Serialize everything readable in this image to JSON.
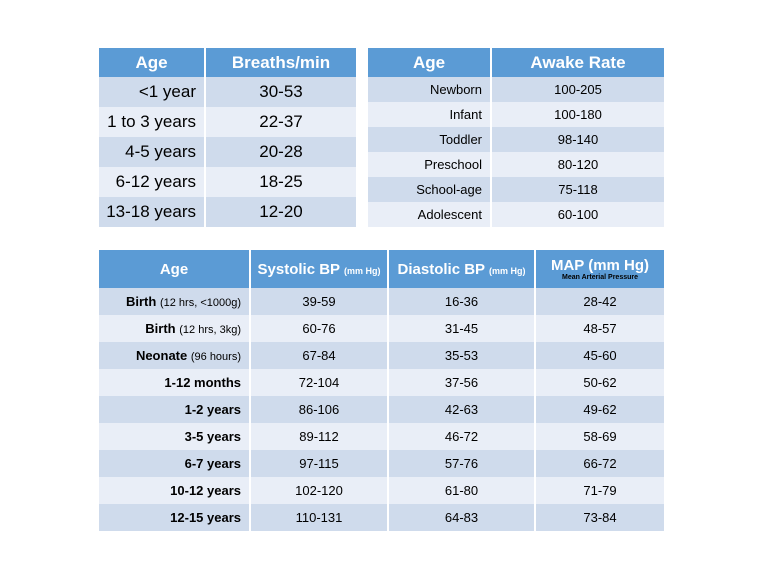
{
  "respiratory": {
    "headers": [
      "Age",
      "Breaths/min"
    ],
    "rows": [
      [
        "<1 year",
        "30-53"
      ],
      [
        "1 to 3 years",
        "22-37"
      ],
      [
        "4-5 years",
        "20-28"
      ],
      [
        "6-12 years",
        "18-25"
      ],
      [
        "13-18 years",
        "12-20"
      ]
    ]
  },
  "heart_rate": {
    "headers": [
      "Age",
      "Awake Rate"
    ],
    "rows": [
      [
        "Newborn",
        "100-205"
      ],
      [
        "Infant",
        "100-180"
      ],
      [
        "Toddler",
        "98-140"
      ],
      [
        "Preschool",
        "80-120"
      ],
      [
        "School-age",
        "75-118"
      ],
      [
        "Adolescent",
        "60-100"
      ]
    ]
  },
  "blood_pressure": {
    "headers": {
      "age": "Age",
      "systolic": "Systolic BP",
      "systolic_unit": "(mm Hg)",
      "diastolic": "Diastolic BP",
      "diastolic_unit": "(mm Hg)",
      "map": "MAP (mm Hg)",
      "map_sub": "Mean Arterial Pressure"
    },
    "rows": [
      {
        "age": "Birth",
        "note": "(12 hrs, <1000g)",
        "systolic": "39-59",
        "diastolic": "16-36",
        "map": "28-42"
      },
      {
        "age": "Birth",
        "note": "(12 hrs, 3kg)",
        "systolic": "60-76",
        "diastolic": "31-45",
        "map": "48-57"
      },
      {
        "age": "Neonate",
        "note": "(96 hours)",
        "systolic": "67-84",
        "diastolic": "35-53",
        "map": "45-60"
      },
      {
        "age": "1-12 months",
        "note": "",
        "systolic": "72-104",
        "diastolic": "37-56",
        "map": "50-62"
      },
      {
        "age": "1-2 years",
        "note": "",
        "systolic": "86-106",
        "diastolic": "42-63",
        "map": "49-62"
      },
      {
        "age": "3-5 years",
        "note": "",
        "systolic": "89-112",
        "diastolic": "46-72",
        "map": "58-69"
      },
      {
        "age": "6-7 years",
        "note": "",
        "systolic": "97-115",
        "diastolic": "57-76",
        "map": "66-72"
      },
      {
        "age": "10-12 years",
        "note": "",
        "systolic": "102-120",
        "diastolic": "61-80",
        "map": "71-79"
      },
      {
        "age": "12-15 years",
        "note": "",
        "systolic": "110-131",
        "diastolic": "64-83",
        "map": "73-84"
      }
    ]
  }
}
